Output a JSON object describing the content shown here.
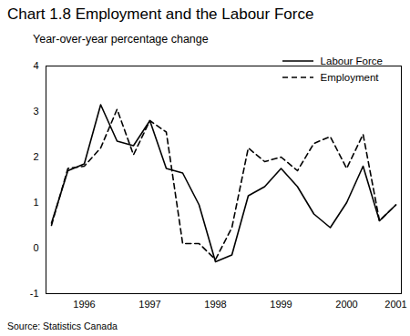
{
  "chart_data": {
    "type": "line",
    "title": "Chart 1.8 Employment and the Labour Force",
    "subtitle": "Year-over-year percentage change",
    "source": "Source: Statistics Canada",
    "categories": [
      null,
      null,
      "1996",
      null,
      null,
      null,
      "1997",
      null,
      null,
      null,
      "1998",
      null,
      null,
      null,
      "1999",
      null,
      null,
      null,
      "2000",
      null,
      null,
      "2001"
    ],
    "series": [
      {
        "name": "Labour Force",
        "color": "#000000",
        "line_style": "solid",
        "values": [
          0.55,
          1.7,
          1.85,
          3.15,
          2.35,
          2.25,
          2.8,
          1.75,
          1.65,
          0.95,
          -0.3,
          -0.15,
          1.15,
          1.35,
          1.75,
          1.35,
          0.75,
          0.45,
          1.0,
          1.8,
          0.6,
          0.95
        ]
      },
      {
        "name": "Employment",
        "color": "#000000",
        "line_style": "dashed",
        "values": [
          0.5,
          1.75,
          1.8,
          2.2,
          3.05,
          2.05,
          2.8,
          2.55,
          0.1,
          0.1,
          -0.25,
          0.45,
          2.2,
          1.9,
          2.0,
          1.7,
          2.3,
          2.45,
          1.75,
          2.5,
          0.6,
          0.95
        ]
      }
    ],
    "ylim": [
      -1,
      4
    ],
    "yticks": [
      -1,
      0,
      1,
      2,
      3,
      4
    ],
    "grid": false,
    "legend": "top-right"
  }
}
